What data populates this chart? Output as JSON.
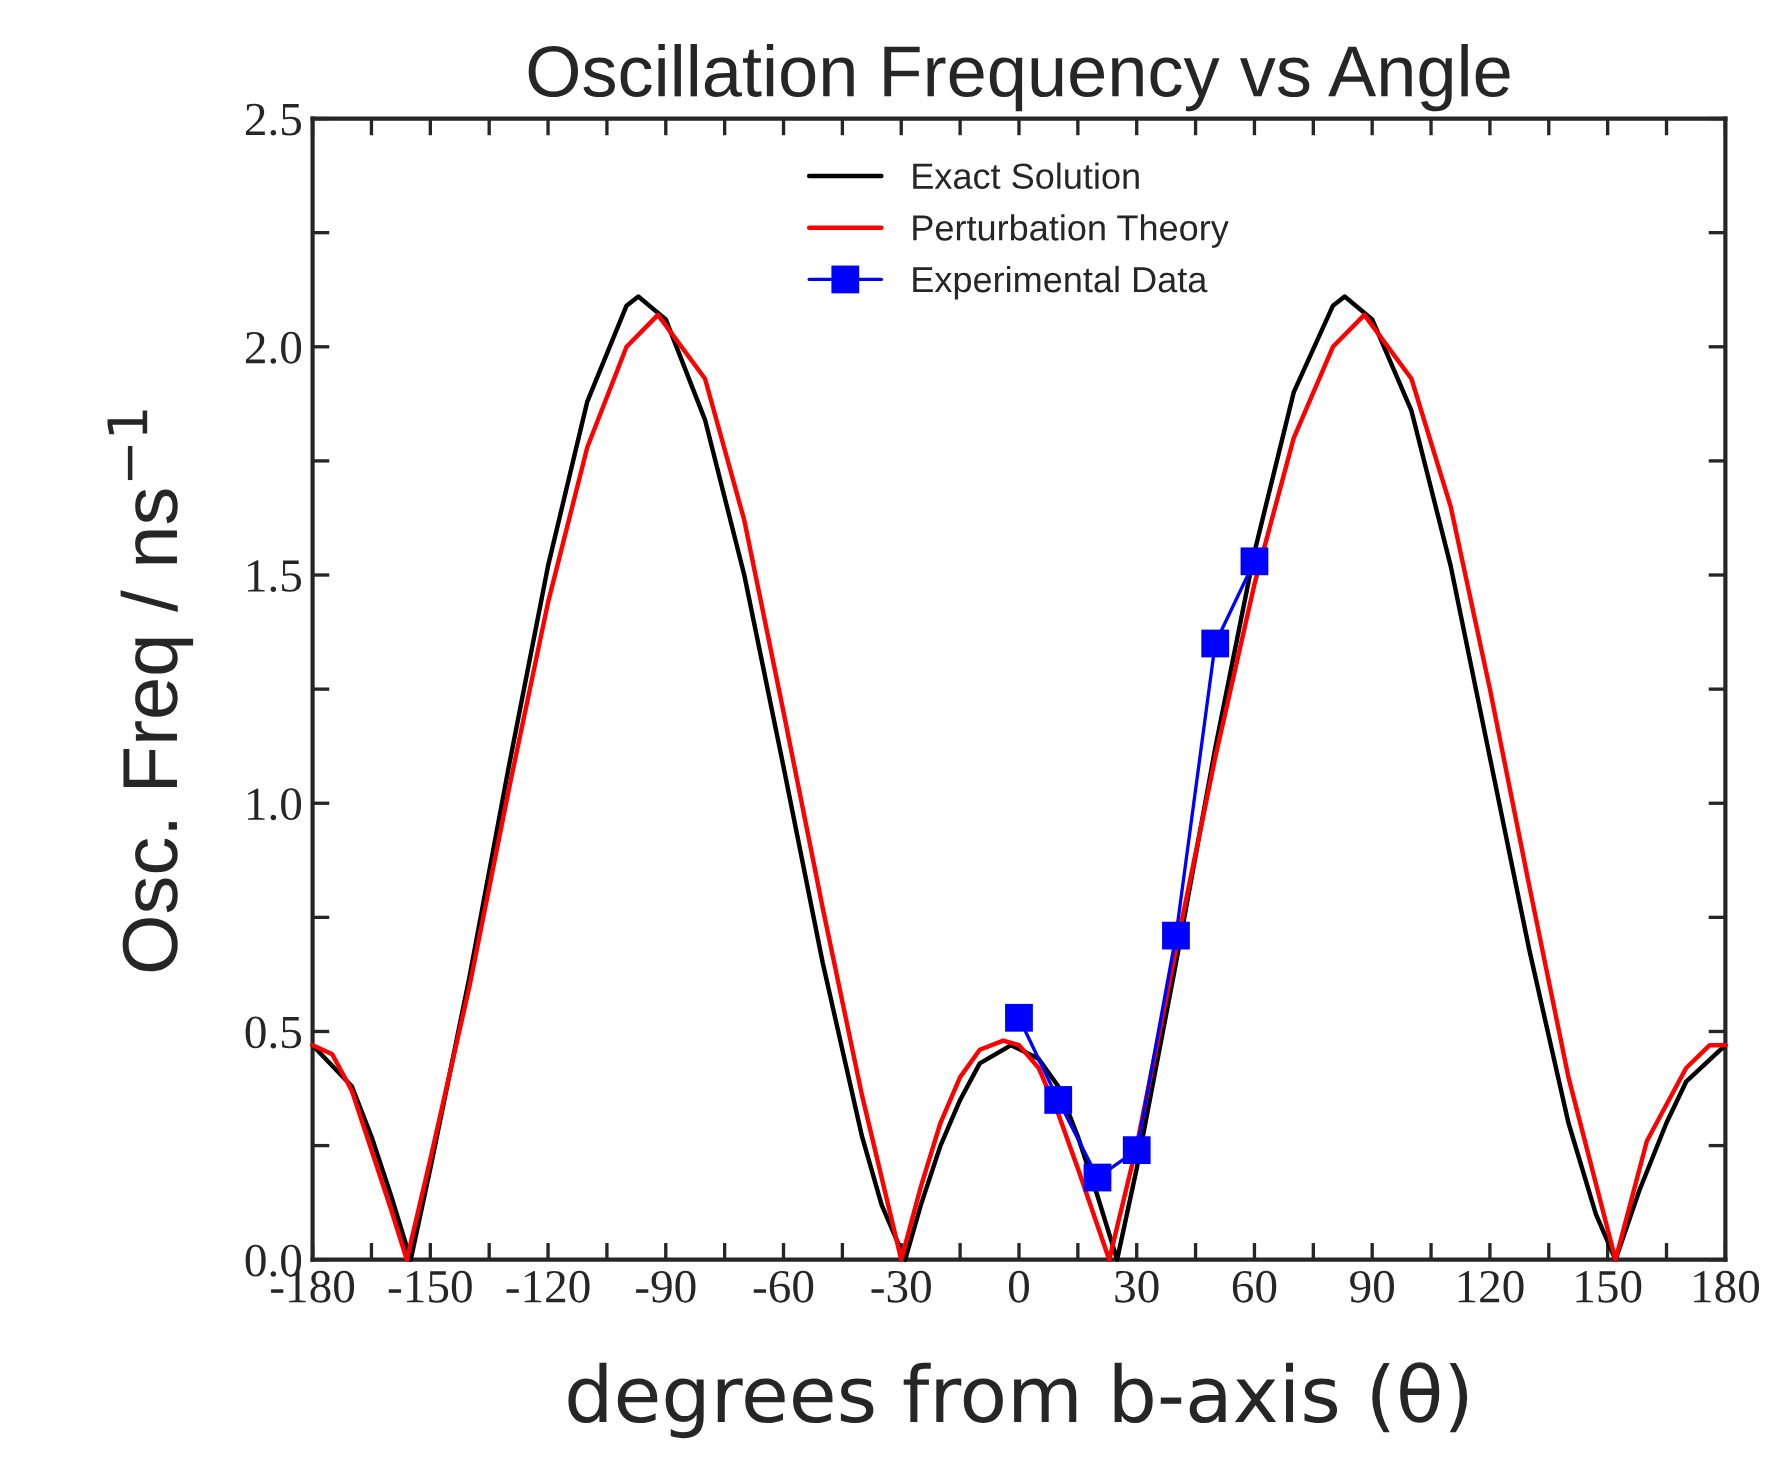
{
  "chart_data": {
    "type": "line",
    "title": "Oscillation Frequency vs Angle",
    "xlabel": "degrees from b-axis (θ)",
    "ylabel": "Osc. Freq / ns$^{−1}$",
    "xlim": [
      -180,
      180
    ],
    "ylim": [
      0,
      2.5
    ],
    "xticks": [
      -180,
      {
        "value": -165,
        "label": null
      },
      -150,
      {
        "value": -135,
        "label": null
      },
      -120,
      {
        "value": -105,
        "label": null
      },
      -90,
      {
        "value": -75,
        "label": null
      },
      -60,
      {
        "value": -45,
        "label": null
      },
      -30,
      {
        "value": -15,
        "label": null
      },
      0,
      {
        "value": 15,
        "label": null
      },
      30,
      {
        "value": 45,
        "label": null
      },
      60,
      {
        "value": 75,
        "label": null
      },
      90,
      {
        "value": 105,
        "label": null
      },
      120,
      {
        "value": 135,
        "label": null
      },
      150,
      {
        "value": 165,
        "label": null
      },
      180
    ],
    "yticks": [
      {
        "value": 0,
        "label": "0.0"
      },
      {
        "value": 0.25,
        "label": null
      },
      0.5,
      {
        "value": 0.75,
        "label": null
      },
      {
        "value": 1,
        "label": "1.0"
      },
      {
        "value": 1.25,
        "label": null
      },
      1.5,
      {
        "value": 1.75,
        "label": null
      },
      {
        "value": 2,
        "label": "2.0"
      },
      {
        "value": 2.25,
        "label": null
      },
      2.5
    ],
    "grid": false,
    "legend": "top",
    "marker": "none",
    "line_style": "solid",
    "series": [
      {
        "name": "Exact Solution",
        "color": "#000000",
        "x": [
          -180,
          -170,
          -165,
          -160,
          -155,
          -150,
          -140,
          -130,
          -120,
          -110,
          -100,
          -97,
          -90,
          -80,
          -70,
          -60,
          -50,
          -40,
          -35,
          -29,
          -25,
          -20,
          -15,
          -10,
          -2,
          5,
          10,
          15,
          20,
          25,
          30,
          40,
          50,
          60,
          70,
          80,
          83,
          90,
          100,
          110,
          120,
          130,
          140,
          147,
          152,
          158,
          165,
          170,
          180
        ],
        "values": [
          0.47,
          0.38,
          0.27,
          0.14,
          0.0,
          0.2,
          0.62,
          1.08,
          1.52,
          1.88,
          2.09,
          2.11,
          2.06,
          1.84,
          1.5,
          1.08,
          0.65,
          0.27,
          0.12,
          0.0,
          0.12,
          0.25,
          0.35,
          0.43,
          0.47,
          0.44,
          0.38,
          0.27,
          0.14,
          0.0,
          0.2,
          0.65,
          1.12,
          1.55,
          1.9,
          2.09,
          2.11,
          2.06,
          1.86,
          1.52,
          1.1,
          0.68,
          0.3,
          0.1,
          0.0,
          0.15,
          0.3,
          0.39,
          0.47
        ]
      },
      {
        "name": "Perturbation Theory",
        "color": "#ff0000",
        "x": [
          -180,
          -175,
          -170,
          -165,
          -160,
          -156,
          -150,
          -140,
          -130,
          -120,
          -110,
          -100,
          -92,
          -80,
          -70,
          -60,
          -50,
          -40,
          -30,
          -25,
          -20,
          -15,
          -10,
          -4,
          0,
          5,
          10,
          15,
          23,
          30,
          40,
          50,
          60,
          70,
          80,
          88,
          100,
          110,
          120,
          130,
          140,
          152,
          160,
          170,
          176,
          180
        ],
        "values": [
          0.47,
          0.45,
          0.37,
          0.24,
          0.11,
          0.0,
          0.22,
          0.6,
          1.03,
          1.44,
          1.78,
          2.0,
          2.07,
          1.93,
          1.62,
          1.2,
          0.77,
          0.36,
          0.0,
          0.16,
          0.3,
          0.4,
          0.46,
          0.48,
          0.47,
          0.42,
          0.32,
          0.2,
          0.0,
          0.25,
          0.68,
          1.1,
          1.48,
          1.8,
          2.0,
          2.07,
          1.93,
          1.65,
          1.25,
          0.82,
          0.4,
          0.0,
          0.26,
          0.42,
          0.47,
          0.47
        ]
      },
      {
        "name": "Experimental Data",
        "color": "#0000ff",
        "marker": "square",
        "x": [
          0,
          10,
          20,
          30,
          40,
          50,
          60
        ],
        "values": [
          0.53,
          0.35,
          0.18,
          0.24,
          0.71,
          1.35,
          1.53
        ]
      }
    ]
  }
}
